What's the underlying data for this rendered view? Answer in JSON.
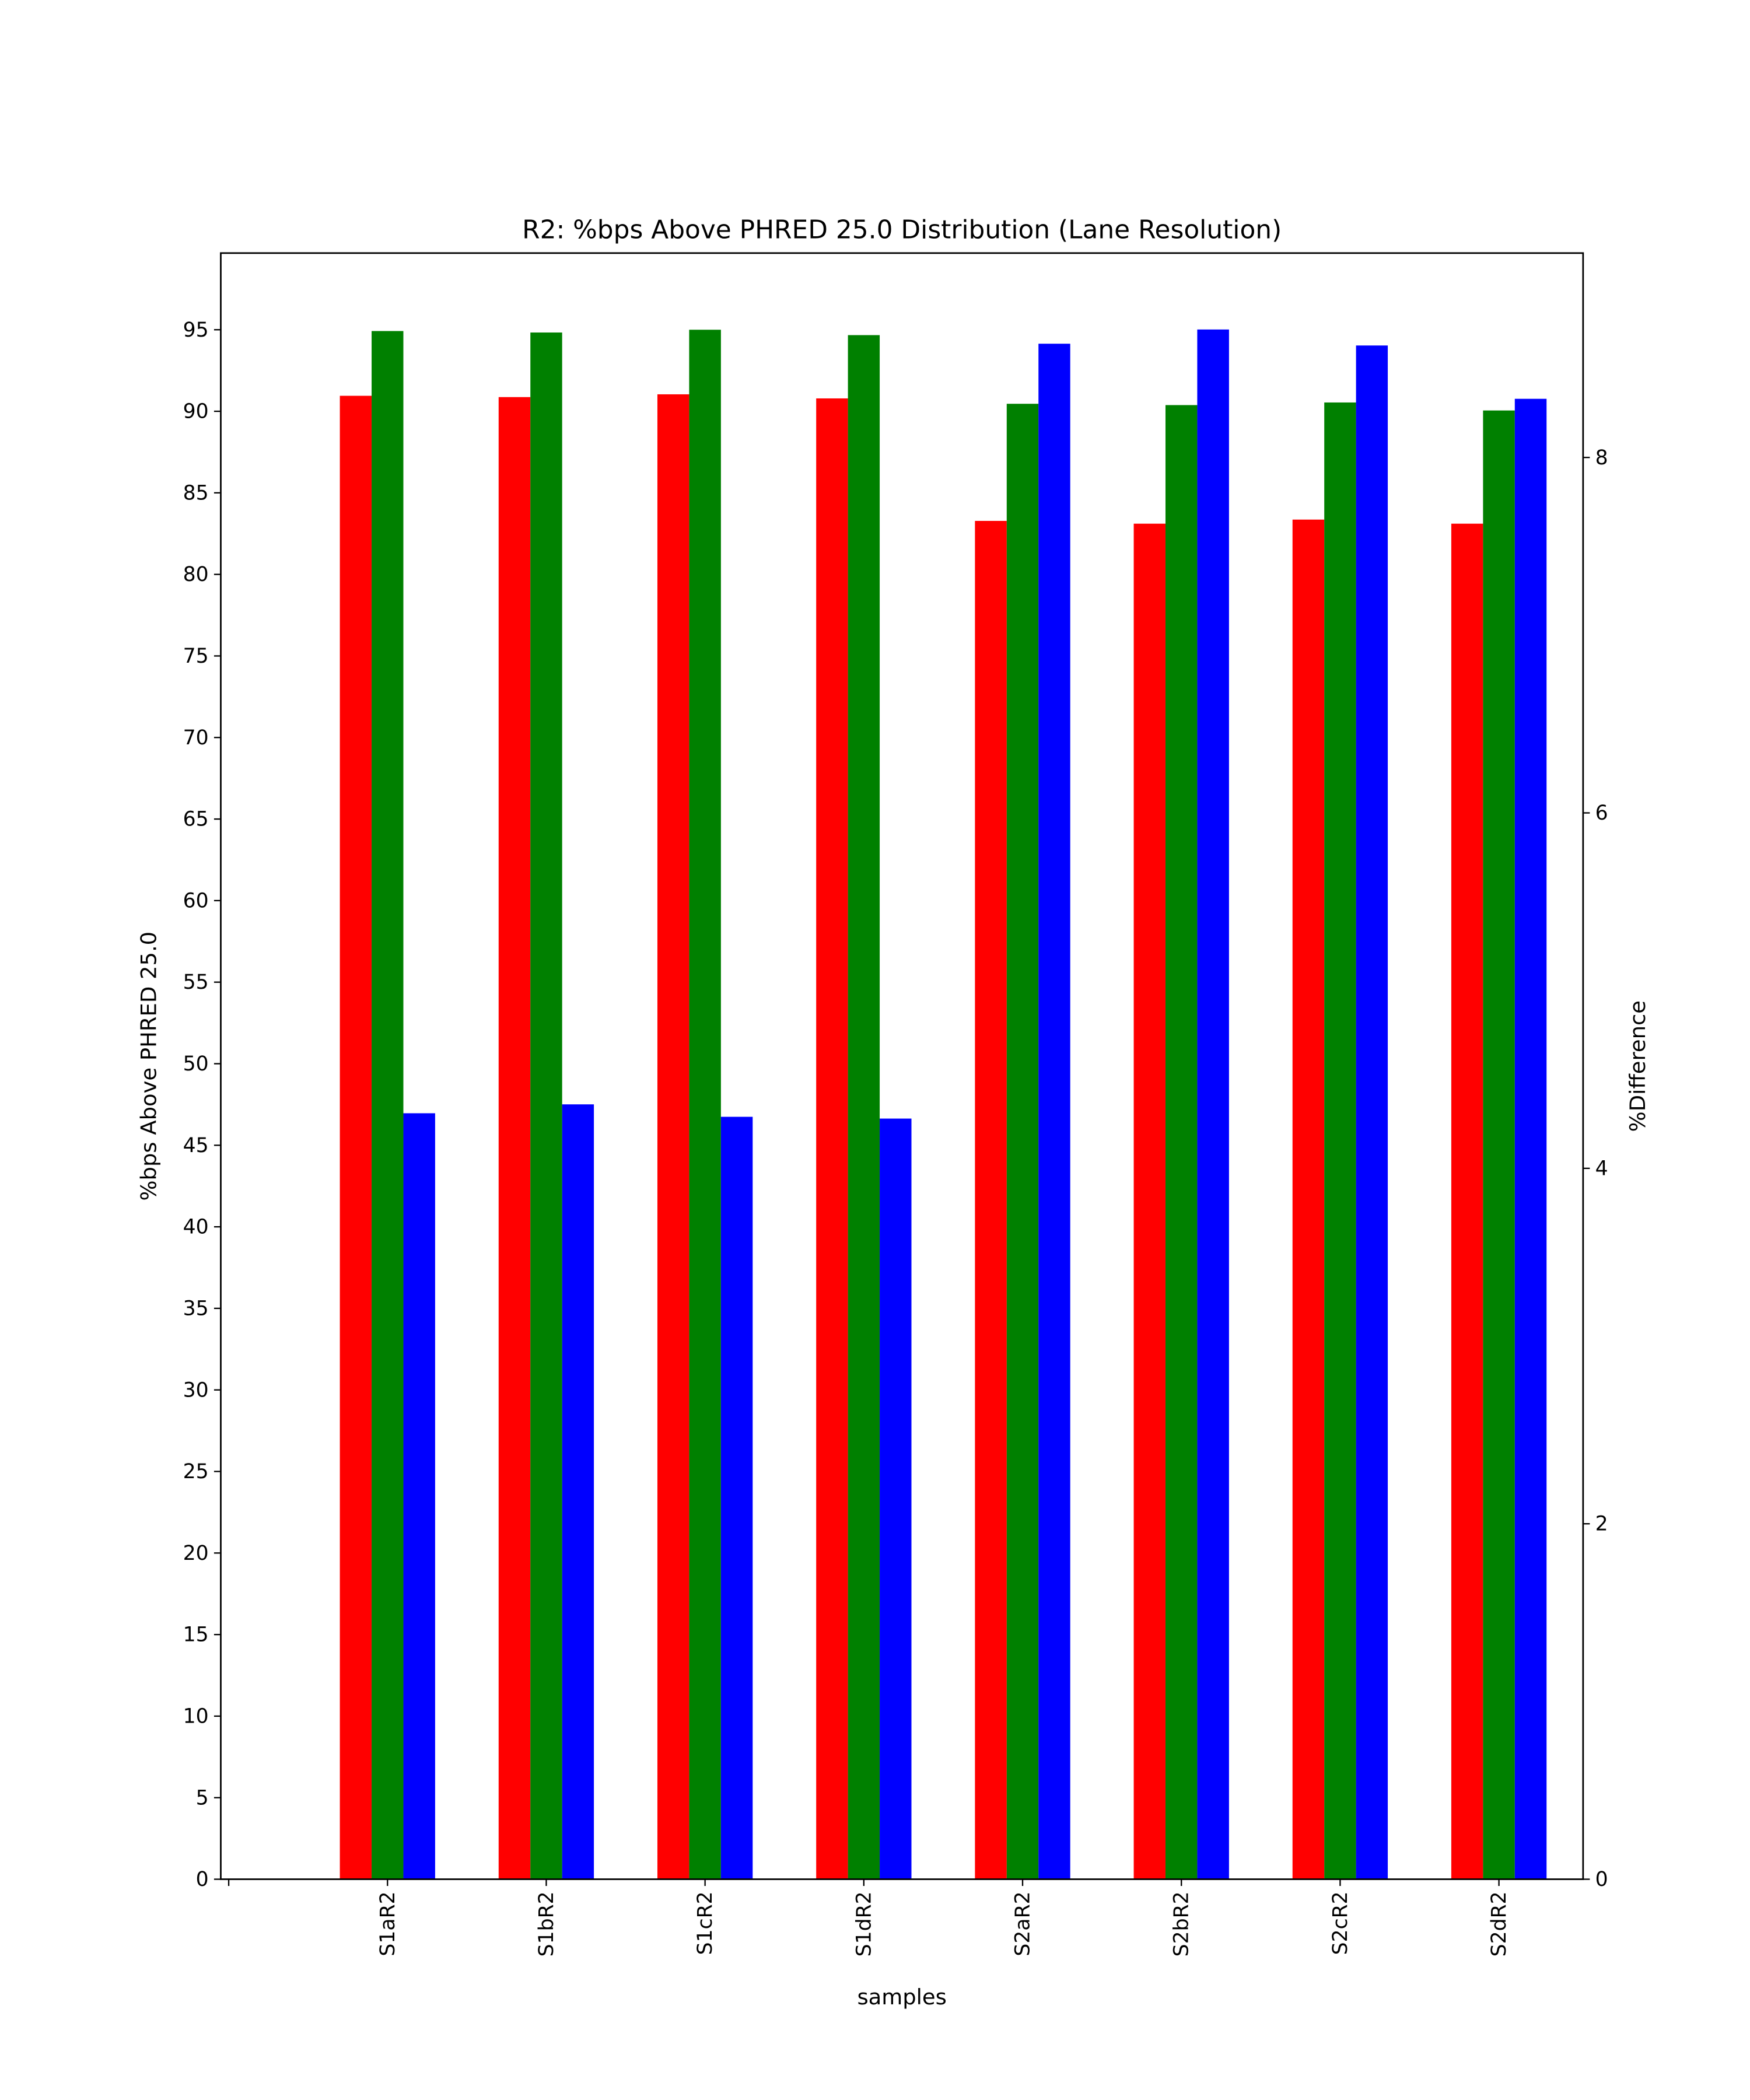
{
  "chart_data": {
    "type": "bar",
    "title": "R2: %bps Above PHRED 25.0 Distribution (Lane Resolution)",
    "xlabel": "samples",
    "ylabel": "%bps Above PHRED 25.0",
    "ylabel_right": "%Difference",
    "categories": [
      "",
      "S1aR2",
      "S1bR2",
      "S1cR2",
      "S1dR2",
      "S2aR2",
      "S2bR2",
      "S2cR2",
      "S2dR2"
    ],
    "ylim": [
      0,
      99.7
    ],
    "ylim_right": [
      0,
      9.15
    ],
    "xlim": [
      -0.05,
      8.53
    ],
    "yticks": [
      0,
      5,
      10,
      15,
      20,
      25,
      30,
      35,
      40,
      45,
      50,
      55,
      60,
      65,
      70,
      75,
      80,
      85,
      90,
      95
    ],
    "yticks_right": [
      0,
      2,
      4,
      6,
      8
    ],
    "grid": false,
    "series": [
      {
        "name": "red",
        "color": "#ff0000",
        "axis": "left",
        "offset": -0.2,
        "values": [
          null,
          90.95,
          90.87,
          91.04,
          90.79,
          83.28,
          83.11,
          83.36,
          83.11
        ]
      },
      {
        "name": "green",
        "color": "#008000",
        "axis": "left",
        "offset": 0,
        "values": [
          null,
          94.92,
          94.83,
          95.0,
          94.67,
          90.46,
          90.38,
          90.54,
          90.05
        ]
      },
      {
        "name": "blue",
        "color": "#0000ff",
        "axis": "right",
        "offset": 0.2,
        "values": [
          null,
          4.31,
          4.36,
          4.29,
          4.28,
          8.64,
          8.72,
          8.63,
          8.33
        ]
      }
    ]
  }
}
